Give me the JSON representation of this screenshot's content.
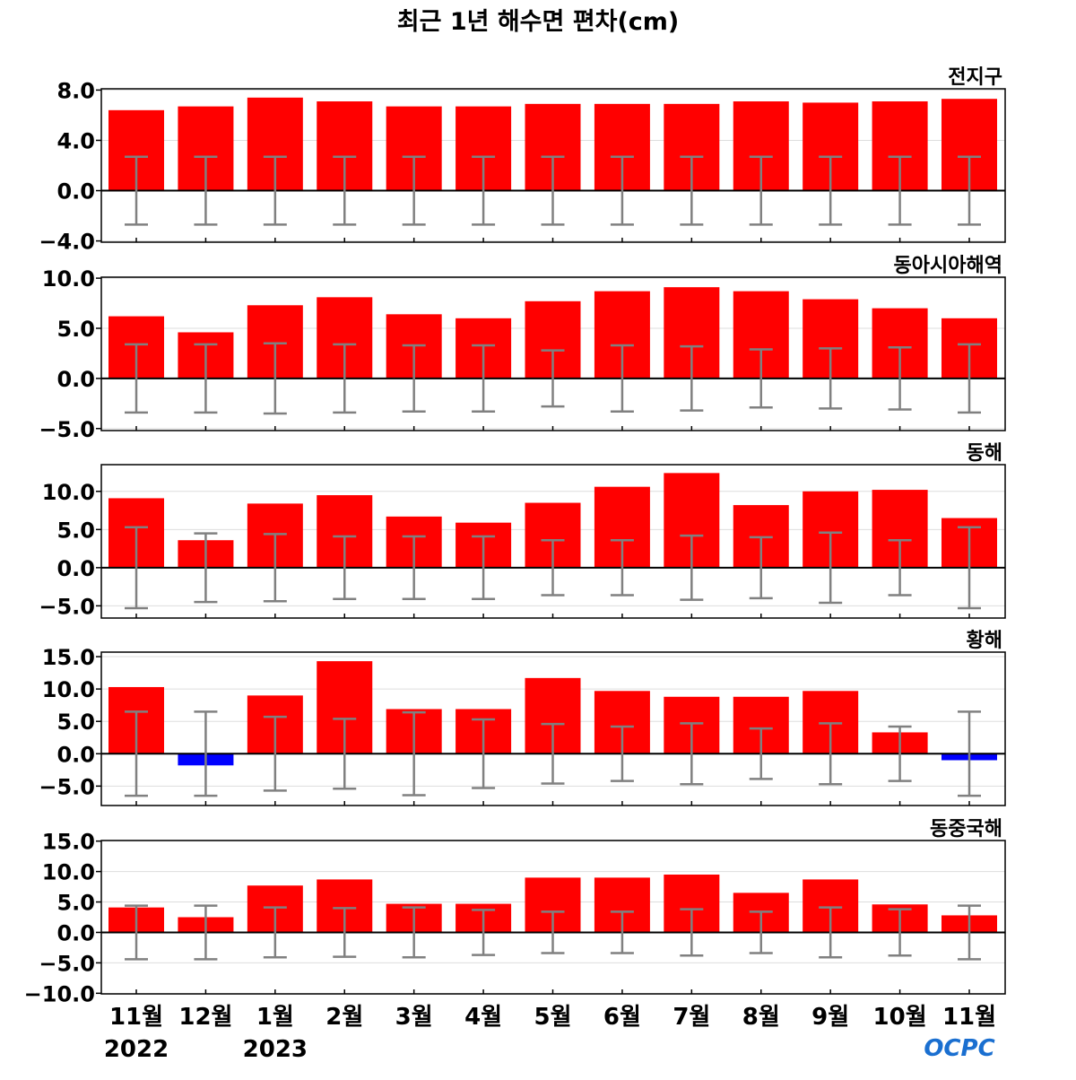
{
  "chart_data": {
    "type": "bar",
    "title": "최근 1년 해수면 편차(cm)",
    "categories": [
      "11월",
      "12월",
      "1월",
      "2월",
      "3월",
      "4월",
      "5월",
      "6월",
      "7월",
      "8월",
      "9월",
      "10월",
      "11월"
    ],
    "year_labels": [
      {
        "label": "2022",
        "index": 0
      },
      {
        "label": "2023",
        "index": 2
      }
    ],
    "logo": "OCPC",
    "colors": {
      "positive": "#ff0000",
      "negative": "#0000ff",
      "error_bar": "#808080"
    },
    "grid": true,
    "panels": [
      {
        "name": "전지구",
        "ylim": [
          -4.1,
          8.1
        ],
        "ticks": [
          -4,
          0,
          4,
          8
        ],
        "tick_labels": [
          "−4.0",
          "0.0",
          "4.0",
          "8.0"
        ],
        "values": [
          6.4,
          6.7,
          7.4,
          7.1,
          6.7,
          6.7,
          6.9,
          6.9,
          6.9,
          7.1,
          7.0,
          7.1,
          7.3
        ],
        "error": [
          2.7,
          2.7,
          2.7,
          2.7,
          2.7,
          2.7,
          2.7,
          2.7,
          2.7,
          2.7,
          2.7,
          2.7,
          2.7
        ]
      },
      {
        "name": "동아시아해역",
        "ylim": [
          -5.2,
          10.1
        ],
        "ticks": [
          -5,
          0,
          5,
          10
        ],
        "tick_labels": [
          "−5.0",
          "0.0",
          "5.0",
          "10.0"
        ],
        "values": [
          6.2,
          4.6,
          7.3,
          8.1,
          6.4,
          6.0,
          7.7,
          8.7,
          9.1,
          8.7,
          7.9,
          7.0,
          6.0
        ],
        "error": [
          3.4,
          3.4,
          3.5,
          3.4,
          3.3,
          3.3,
          2.8,
          3.3,
          3.2,
          2.9,
          3.0,
          3.1,
          3.4
        ]
      },
      {
        "name": "동해",
        "ylim": [
          -6.6,
          13.5
        ],
        "ticks": [
          -5,
          0,
          5,
          10
        ],
        "tick_labels": [
          "−5.0",
          "0.0",
          "5.0",
          "10.0"
        ],
        "values": [
          9.1,
          3.6,
          8.4,
          9.5,
          6.7,
          5.9,
          8.5,
          10.6,
          12.4,
          8.2,
          10.0,
          10.2,
          6.5
        ],
        "error": [
          5.3,
          4.5,
          4.4,
          4.1,
          4.1,
          4.1,
          3.6,
          3.6,
          4.2,
          4.0,
          4.6,
          3.6,
          5.3
        ]
      },
      {
        "name": "황해",
        "ylim": [
          -8.0,
          15.7
        ],
        "ticks": [
          -5,
          0,
          5,
          10,
          15
        ],
        "tick_labels": [
          "−5.0",
          "0.0",
          "5.0",
          "10.0",
          "15.0"
        ],
        "values": [
          10.3,
          -1.8,
          9.0,
          14.3,
          6.9,
          6.9,
          11.7,
          9.7,
          8.8,
          8.8,
          9.7,
          3.3,
          -1.0
        ],
        "error": [
          6.5,
          6.5,
          5.7,
          5.4,
          6.4,
          5.3,
          4.6,
          4.2,
          4.7,
          3.9,
          4.7,
          4.2,
          6.5
        ]
      },
      {
        "name": "동중국해",
        "ylim": [
          -10.1,
          15.1
        ],
        "ticks": [
          -10,
          -5,
          0,
          5,
          10,
          15
        ],
        "tick_labels": [
          "−10.0",
          "−5.0",
          "0.0",
          "5.0",
          "10.0",
          "15.0"
        ],
        "values": [
          4.1,
          2.5,
          7.7,
          8.7,
          4.7,
          4.7,
          9.0,
          9.0,
          9.5,
          6.5,
          8.7,
          4.6,
          2.8
        ],
        "error": [
          4.4,
          4.4,
          4.1,
          4.0,
          4.1,
          3.7,
          3.4,
          3.4,
          3.8,
          3.4,
          4.1,
          3.8,
          4.4
        ]
      }
    ]
  }
}
